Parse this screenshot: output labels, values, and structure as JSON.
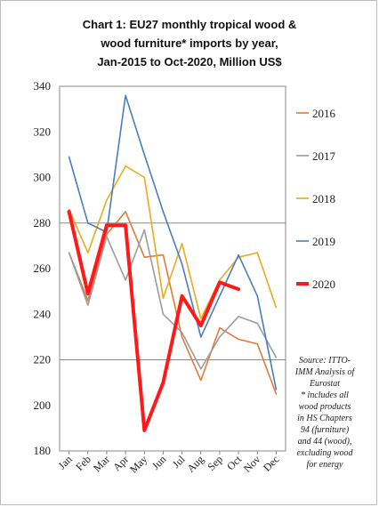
{
  "chart_data": {
    "type": "line",
    "title": "Chart 1: EU27 monthly tropical wood &\nwood furniture* imports by year,\nJan-2015 to Oct-2020, Million US$",
    "xlabel": "",
    "ylabel": "",
    "ylim": [
      180,
      340
    ],
    "yticks": [
      "180",
      "200",
      "220",
      "240",
      "260",
      "280",
      "300",
      "320",
      "340"
    ],
    "grid": "horizontal at 220 and 280",
    "categories": [
      "Jan",
      "Feb",
      "Mar",
      "Apr",
      "May",
      "Jun",
      "Jul",
      "Aug",
      "Sep",
      "Oct",
      "Nov",
      "Dec"
    ],
    "legend_position": "right",
    "series": [
      {
        "name": "2016",
        "color": "#e07b39",
        "values": [
          267,
          246,
          275,
          285,
          265,
          266,
          230,
          211,
          234,
          229,
          227,
          205
        ]
      },
      {
        "name": "2017",
        "color": "#9c9c9c",
        "values": [
          267,
          244,
          274,
          255,
          277,
          240,
          232,
          216,
          230,
          239,
          236,
          221
        ]
      },
      {
        "name": "2018",
        "color": "#e6ac1c",
        "values": [
          286,
          267,
          290,
          305,
          300,
          247,
          271,
          238,
          255,
          265,
          267,
          243
        ]
      },
      {
        "name": "2019",
        "color": "#4a7ebb",
        "values": [
          309,
          280,
          276,
          336,
          310,
          285,
          262,
          230,
          248,
          266,
          248,
          207
        ]
      },
      {
        "name": "2020",
        "color": "#ff1a1a",
        "values": [
          285,
          249,
          279,
          279,
          189,
          210,
          248,
          235,
          254,
          251,
          null,
          null
        ]
      }
    ],
    "source_note": [
      "Source: ITTO-",
      "IMM Analysis of",
      "Eurostat",
      "* includes all",
      "wood products",
      "in HS Chapters",
      "94 (furniture)",
      "and 44 (wood),",
      "excluding wood",
      "for energy"
    ]
  }
}
